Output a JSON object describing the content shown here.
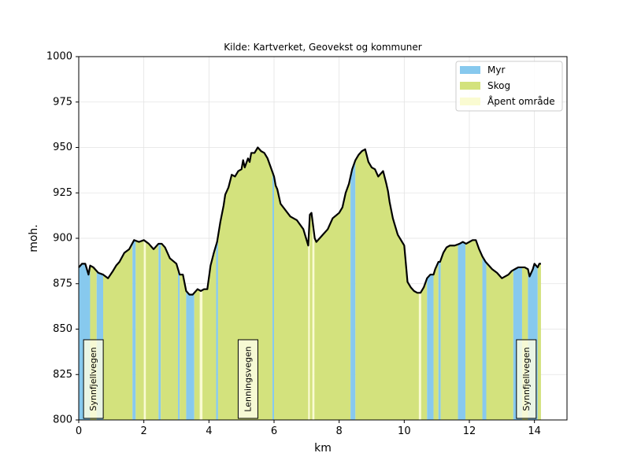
{
  "chart_data": {
    "type": "area",
    "title": "Kilde: Kartverket, Geovekst og kommuner",
    "xlabel": "km",
    "ylabel": "moh.",
    "xlim": [
      0,
      15
    ],
    "ylim": [
      800,
      1000
    ],
    "x_ticks": [
      0,
      2,
      4,
      6,
      8,
      10,
      12,
      14
    ],
    "y_ticks": [
      800,
      825,
      850,
      875,
      900,
      925,
      950,
      975,
      1000
    ],
    "grid": true,
    "legend_position": "top-right",
    "legend": [
      {
        "label": "Myr",
        "color": "#87c9ee"
      },
      {
        "label": "Skog",
        "color": "#d3e27d"
      },
      {
        "label": "Åpent område",
        "color": "#fafbd2"
      }
    ],
    "profile": {
      "x": [
        0,
        0.1,
        0.2,
        0.3,
        0.35,
        0.45,
        0.6,
        0.75,
        0.9,
        1.05,
        1.15,
        1.25,
        1.4,
        1.55,
        1.7,
        1.85,
        2.0,
        2.15,
        2.3,
        2.45,
        2.55,
        2.65,
        2.8,
        3.0,
        3.1,
        3.2,
        3.3,
        3.4,
        3.5,
        3.65,
        3.75,
        3.85,
        3.95,
        4.05,
        4.15,
        4.25,
        4.35,
        4.45,
        4.5,
        4.6,
        4.7,
        4.8,
        4.9,
        5.0,
        5.05,
        5.1,
        5.2,
        5.25,
        5.3,
        5.4,
        5.5,
        5.6,
        5.7,
        5.8,
        5.9,
        6.0,
        6.05,
        6.1,
        6.2,
        6.5,
        6.7,
        6.9,
        7.05,
        7.1,
        7.15,
        7.25,
        7.3,
        7.5,
        7.65,
        7.8,
        8.0,
        8.1,
        8.2,
        8.3,
        8.4,
        8.5,
        8.6,
        8.7,
        8.8,
        8.9,
        9.0,
        9.1,
        9.2,
        9.25,
        9.3,
        9.35,
        9.45,
        9.5,
        9.55,
        9.65,
        9.7,
        9.8,
        10.0,
        10.1,
        10.2,
        10.3,
        10.4,
        10.5,
        10.6,
        10.7,
        10.8,
        10.9,
        10.95,
        11.05,
        11.1,
        11.2,
        11.3,
        11.4,
        11.55,
        11.7,
        11.8,
        11.9,
        12.0,
        12.1,
        12.2,
        12.3,
        12.4,
        12.5,
        12.7,
        12.85,
        13.0,
        13.2,
        13.3,
        13.4,
        13.5,
        13.6,
        13.7,
        13.8,
        13.85,
        13.95,
        14.0,
        14.1,
        14.15,
        14.2
      ],
      "y": [
        884,
        886,
        886,
        880,
        885,
        884,
        881,
        880,
        878,
        882,
        885,
        887,
        892,
        894,
        899,
        898,
        899,
        897,
        894,
        897,
        897,
        895,
        889,
        886,
        880,
        880,
        871,
        869,
        869,
        872,
        871,
        872,
        872,
        885,
        892,
        898,
        909,
        918,
        924,
        928,
        935,
        934,
        937,
        938,
        943,
        939,
        944,
        942,
        947,
        947,
        950,
        948,
        947,
        944,
        939,
        934,
        929,
        927,
        919,
        912,
        910,
        905,
        896,
        913,
        914,
        900,
        898,
        902,
        905,
        911,
        914,
        917,
        925,
        930,
        938,
        943,
        946,
        948,
        949,
        942,
        939,
        938,
        934,
        935,
        936,
        937,
        930,
        926,
        920,
        911,
        908,
        902,
        896,
        876,
        873,
        871,
        870,
        870,
        873,
        878,
        880,
        880,
        883,
        887,
        887,
        892,
        895,
        896,
        896,
        897,
        898,
        897,
        898,
        899,
        899,
        894,
        890,
        887,
        883,
        881,
        878,
        880,
        882,
        883,
        884,
        884,
        884,
        883,
        879,
        883,
        886,
        884,
        886,
        886
      ]
    },
    "land_cover": [
      {
        "type": "Myr",
        "from": 0.0,
        "to": 0.35
      },
      {
        "type": "Skog",
        "from": 0.35,
        "to": 0.55
      },
      {
        "type": "Myr",
        "from": 0.55,
        "to": 0.75
      },
      {
        "type": "Skog",
        "from": 0.75,
        "to": 1.65
      },
      {
        "type": "Myr",
        "from": 1.65,
        "to": 1.75
      },
      {
        "type": "Skog",
        "from": 1.75,
        "to": 2.0
      },
      {
        "type": "Åpent område",
        "from": 2.0,
        "to": 2.06
      },
      {
        "type": "Skog",
        "from": 2.06,
        "to": 2.45
      },
      {
        "type": "Myr",
        "from": 2.45,
        "to": 2.52
      },
      {
        "type": "Skog",
        "from": 2.52,
        "to": 3.05
      },
      {
        "type": "Myr",
        "from": 3.05,
        "to": 3.1
      },
      {
        "type": "Skog",
        "from": 3.1,
        "to": 3.3
      },
      {
        "type": "Myr",
        "from": 3.3,
        "to": 3.55
      },
      {
        "type": "Skog",
        "from": 3.55,
        "to": 3.72
      },
      {
        "type": "Åpent område",
        "from": 3.72,
        "to": 3.8
      },
      {
        "type": "Skog",
        "from": 3.8,
        "to": 4.22
      },
      {
        "type": "Myr",
        "from": 4.22,
        "to": 4.28
      },
      {
        "type": "Skog",
        "from": 4.28,
        "to": 5.95
      },
      {
        "type": "Myr",
        "from": 5.95,
        "to": 6.0
      },
      {
        "type": "Skog",
        "from": 6.0,
        "to": 7.05
      },
      {
        "type": "Åpent område",
        "from": 7.05,
        "to": 7.1
      },
      {
        "type": "Skog",
        "from": 7.1,
        "to": 7.18
      },
      {
        "type": "Åpent område",
        "from": 7.18,
        "to": 7.24
      },
      {
        "type": "Skog",
        "from": 7.24,
        "to": 8.35
      },
      {
        "type": "Myr",
        "from": 8.35,
        "to": 8.5
      },
      {
        "type": "Skog",
        "from": 8.5,
        "to": 10.45
      },
      {
        "type": "Åpent område",
        "from": 10.45,
        "to": 10.52
      },
      {
        "type": "Skog",
        "from": 10.52,
        "to": 10.7
      },
      {
        "type": "Myr",
        "from": 10.7,
        "to": 10.9
      },
      {
        "type": "Skog",
        "from": 10.9,
        "to": 11.05
      },
      {
        "type": "Myr",
        "from": 11.05,
        "to": 11.12
      },
      {
        "type": "Skog",
        "from": 11.12,
        "to": 11.65
      },
      {
        "type": "Myr",
        "from": 11.65,
        "to": 11.88
      },
      {
        "type": "Skog",
        "from": 11.88,
        "to": 12.4
      },
      {
        "type": "Myr",
        "from": 12.4,
        "to": 12.52
      },
      {
        "type": "Skog",
        "from": 12.52,
        "to": 13.35
      },
      {
        "type": "Myr",
        "from": 13.35,
        "to": 13.62
      },
      {
        "type": "Skog",
        "from": 13.62,
        "to": 13.8
      },
      {
        "type": "Myr",
        "from": 13.8,
        "to": 14.1
      },
      {
        "type": "Skog",
        "from": 14.1,
        "to": 14.2
      }
    ],
    "road_labels": [
      {
        "label": "Synnfjellvegen",
        "x": 0.45
      },
      {
        "label": "Lenningsvegen",
        "x": 5.2
      },
      {
        "label": "Synnfjellvegen",
        "x": 13.75
      }
    ]
  }
}
